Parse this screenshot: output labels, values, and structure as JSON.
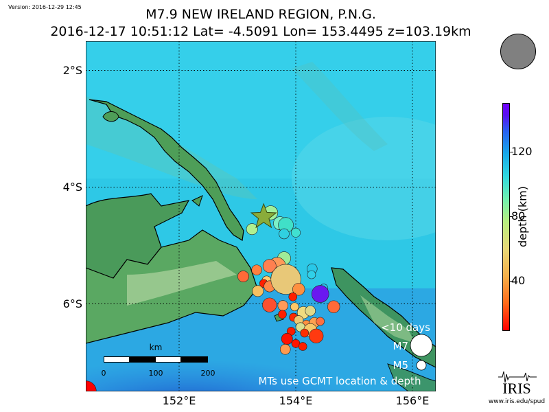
{
  "version": "Version: 2016-12-29 12:45",
  "title": {
    "line1": "M7.9 NEW IRELAND REGION, P.N.G.",
    "line2": "2016-12-17 10:51:12 Lat= -4.5091 Lon= 153.4495 z=103.19km"
  },
  "map": {
    "lon_range": [
      150.4,
      156.4
    ],
    "lat_range": [
      -7.5,
      -1.5
    ],
    "lon_ticks": [
      {
        "value": 152,
        "label": "152°E"
      },
      {
        "value": 154,
        "label": "154°E"
      },
      {
        "value": 156,
        "label": "156°E"
      }
    ],
    "lat_ticks": [
      {
        "value": -2,
        "label": "2°S"
      },
      {
        "value": -4,
        "label": "4°S"
      },
      {
        "value": -6,
        "label": "6°S"
      }
    ],
    "mainshock": {
      "lon": 153.45,
      "lat": -4.51,
      "color": "#8aac3a"
    },
    "legend": {
      "title": "<10 days",
      "large": "M7",
      "small": "M5"
    },
    "note": "MTs use GCMT location & depth",
    "scalebar": {
      "unit": "km",
      "labels": [
        "0",
        "100",
        "200"
      ]
    },
    "events": [
      {
        "lon": 153.57,
        "lat": -4.44,
        "mag": 5.6,
        "color": "#9ff09a"
      },
      {
        "lon": 153.25,
        "lat": -4.72,
        "mag": 5.3,
        "color": "#b0f090"
      },
      {
        "lon": 153.73,
        "lat": -4.62,
        "mag": 5.5,
        "color": "#7cf0c8"
      },
      {
        "lon": 153.83,
        "lat": -4.65,
        "mag": 5.7,
        "color": "#40e0c8"
      },
      {
        "lon": 153.8,
        "lat": -4.8,
        "mag": 5.2,
        "color": "#30d0e0"
      },
      {
        "lon": 154.0,
        "lat": -4.78,
        "mag": 5.1,
        "color": "#40e0d0"
      },
      {
        "lon": 153.8,
        "lat": -5.22,
        "mag": 5.5,
        "color": "#a0ec98"
      },
      {
        "lon": 154.28,
        "lat": -5.4,
        "mag": 5.2,
        "color": "#28c8e8"
      },
      {
        "lon": 154.27,
        "lat": -5.5,
        "mag": 5.0,
        "color": "#30d0e8"
      },
      {
        "lon": 154.48,
        "lat": -5.73,
        "mag": 5.0,
        "color": "#28c0e8"
      },
      {
        "lon": 153.68,
        "lat": -5.35,
        "mag": 5.9,
        "color": "#ff9a58"
      },
      {
        "lon": 153.55,
        "lat": -5.35,
        "mag": 5.5,
        "color": "#ff8050"
      },
      {
        "lon": 153.33,
        "lat": -5.42,
        "mag": 5.2,
        "color": "#ff8040"
      },
      {
        "lon": 153.1,
        "lat": -5.53,
        "mag": 5.3,
        "color": "#ff6a38"
      },
      {
        "lon": 153.5,
        "lat": -5.6,
        "mag": 5.1,
        "color": "#ffcc70"
      },
      {
        "lon": 153.45,
        "lat": -5.65,
        "mag": 5.0,
        "color": "#ff2000"
      },
      {
        "lon": 153.68,
        "lat": -5.65,
        "mag": 5.4,
        "color": "#ffb860"
      },
      {
        "lon": 153.55,
        "lat": -5.7,
        "mag": 5.3,
        "color": "#ff8848"
      },
      {
        "lon": 153.35,
        "lat": -5.78,
        "mag": 5.3,
        "color": "#f8c060"
      },
      {
        "lon": 153.83,
        "lat": -5.58,
        "mag": 7.2,
        "color": "#e8c878"
      },
      {
        "lon": 154.05,
        "lat": -5.75,
        "mag": 5.4,
        "color": "#ff9040"
      },
      {
        "lon": 153.95,
        "lat": -5.88,
        "mag": 5.0,
        "color": "#ff2000"
      },
      {
        "lon": 154.42,
        "lat": -5.83,
        "mag": 5.9,
        "color": "#6a18f0"
      },
      {
        "lon": 153.55,
        "lat": -6.02,
        "mag": 5.6,
        "color": "#ff5030"
      },
      {
        "lon": 153.78,
        "lat": -6.03,
        "mag": 5.2,
        "color": "#ff9a58"
      },
      {
        "lon": 153.98,
        "lat": -6.05,
        "mag": 5.0,
        "color": "#ffc868"
      },
      {
        "lon": 153.77,
        "lat": -6.18,
        "mag": 5.0,
        "color": "#ff2000"
      },
      {
        "lon": 153.96,
        "lat": -6.23,
        "mag": 5.0,
        "color": "#ff2a00"
      },
      {
        "lon": 154.13,
        "lat": -6.15,
        "mag": 5.4,
        "color": "#f0dc80"
      },
      {
        "lon": 154.25,
        "lat": -6.12,
        "mag": 5.2,
        "color": "#e0d888"
      },
      {
        "lon": 154.05,
        "lat": -6.28,
        "mag": 5.1,
        "color": "#f0c870"
      },
      {
        "lon": 154.18,
        "lat": -6.35,
        "mag": 5.0,
        "color": "#ff9040"
      },
      {
        "lon": 154.32,
        "lat": -6.32,
        "mag": 5.2,
        "color": "#ffa050"
      },
      {
        "lon": 154.08,
        "lat": -6.4,
        "mag": 5.1,
        "color": "#d8e090"
      },
      {
        "lon": 154.25,
        "lat": -6.45,
        "mag": 5.5,
        "color": "#f8c868"
      },
      {
        "lon": 154.42,
        "lat": -6.3,
        "mag": 5.0,
        "color": "#ff7040"
      },
      {
        "lon": 154.65,
        "lat": -6.05,
        "mag": 5.4,
        "color": "#ff6a38"
      },
      {
        "lon": 154.15,
        "lat": -6.5,
        "mag": 5.0,
        "color": "#ff3000"
      },
      {
        "lon": 154.35,
        "lat": -6.55,
        "mag": 5.6,
        "color": "#ff3a10"
      },
      {
        "lon": 153.92,
        "lat": -6.47,
        "mag": 5.0,
        "color": "#ff1a00"
      },
      {
        "lon": 153.85,
        "lat": -6.6,
        "mag": 5.3,
        "color": "#ff1000"
      },
      {
        "lon": 154.0,
        "lat": -6.68,
        "mag": 5.0,
        "color": "#ff1500"
      },
      {
        "lon": 153.82,
        "lat": -6.78,
        "mag": 5.2,
        "color": "#ff9a50"
      },
      {
        "lon": 154.12,
        "lat": -6.73,
        "mag": 5.0,
        "color": "#ff2000"
      },
      {
        "lon": 150.4,
        "lat": -7.5,
        "mag": 6.3,
        "color": "#ff0000"
      }
    ]
  },
  "colorbar": {
    "title": "depth (km)",
    "min": 10,
    "max": 150,
    "ticks": [
      {
        "value": 40,
        "label": "40"
      },
      {
        "value": 80,
        "label": "80"
      },
      {
        "value": 120,
        "label": "120"
      }
    ]
  },
  "logo": {
    "text": "IRIS",
    "url": "www.iris.edu/spud"
  }
}
